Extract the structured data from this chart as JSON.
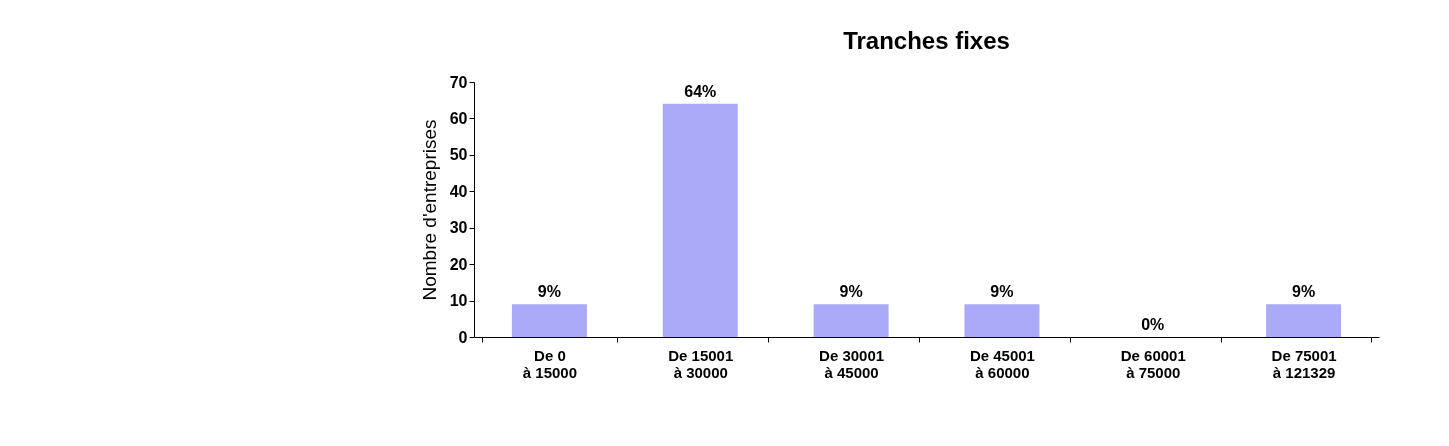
{
  "chart_data": {
    "type": "bar",
    "title": "Tranches fixes",
    "ylabel": "Nombre d'entreprises",
    "categories": [
      "De 0\nà 15000",
      "De 15001\nà 30000",
      "De 30001\nà 45000",
      "De 45001\nà 60000",
      "De 60001\nà 75000",
      "De 75001\nà 121329"
    ],
    "values": [
      9,
      64,
      9,
      9,
      0,
      9
    ],
    "value_labels": [
      "9%",
      "64%",
      "9%",
      "9%",
      "0%",
      "9%"
    ],
    "color": "#aaaaf8",
    "ylim": [
      0,
      70
    ],
    "yticks": [
      0,
      10,
      20,
      30,
      40,
      50,
      60,
      70
    ],
    "grid": false
  }
}
